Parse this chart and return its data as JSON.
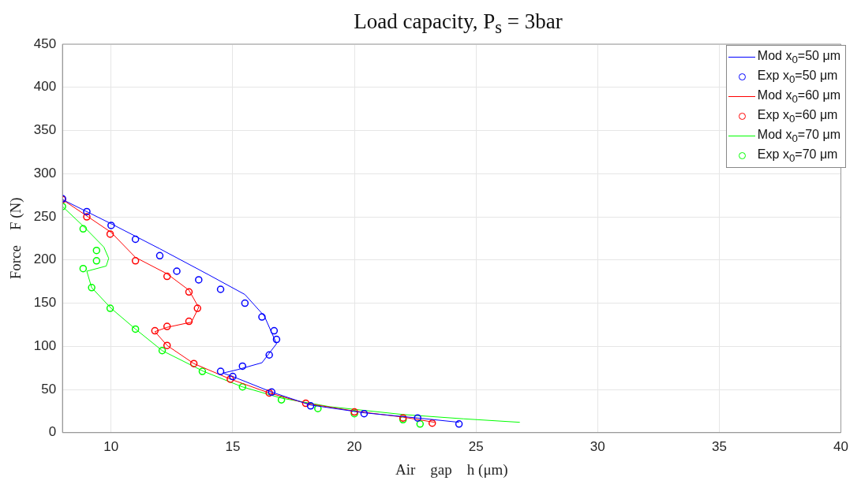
{
  "chart_data": {
    "type": "line",
    "title": "Load capacity, P$_{s}$ = 3bar",
    "xlabel": "Air    gap    h (μm)",
    "ylabel": "Force    F (N)",
    "xlim": [
      8,
      40
    ],
    "xticks": [
      10,
      15,
      20,
      25,
      30,
      35,
      40
    ],
    "ylim": [
      0,
      450
    ],
    "yticks": [
      0,
      50,
      100,
      150,
      200,
      250,
      300,
      350,
      400,
      450
    ],
    "grid": true,
    "legend": "top right",
    "series": [
      {
        "name": "Mod x$_{0}$=50 μm",
        "type": "line",
        "color": "#0000ff",
        "x": [
          8,
          10,
          12,
          14,
          15.5,
          16.3,
          16.8,
          16.2,
          15.2,
          14.6,
          15,
          16.6,
          18.2,
          20.4,
          22.6,
          24.3
        ],
        "values": [
          270,
          242,
          213,
          183,
          160,
          135,
          103,
          81,
          73,
          69,
          65,
          47,
          32,
          23,
          17,
          12
        ]
      },
      {
        "name": "Exp x$_{0}$=50 μm",
        "type": "scatter",
        "marker": "circle",
        "color": "#0000ff",
        "x": [
          8,
          9,
          10,
          11,
          12,
          12.7,
          13.6,
          14.5,
          15.5,
          16.2,
          16.7,
          16.8,
          16.5,
          15.4,
          14.5,
          15,
          16.6,
          18.2,
          20.4,
          22.6,
          24.3
        ],
        "values": [
          271,
          256,
          240,
          224,
          205,
          187,
          177,
          166,
          150,
          134,
          118,
          108,
          90,
          77,
          71,
          65,
          47,
          31,
          22,
          17,
          10
        ]
      },
      {
        "name": "Mod x$_{0}$=60 μm",
        "type": "line",
        "color": "#ff0000",
        "x": [
          8,
          10,
          11,
          12.3,
          13.2,
          13.6,
          13.3,
          12.3,
          11.8,
          12.3,
          13.4,
          14.9,
          16.5,
          18,
          20,
          22,
          23.3
        ],
        "values": [
          270,
          232,
          203,
          184,
          165,
          145,
          128,
          122,
          117,
          101,
          80,
          62,
          46,
          34,
          25,
          18,
          12
        ]
      },
      {
        "name": "Exp x$_{0}$=60 μm",
        "type": "scatter",
        "marker": "circle",
        "color": "#ff0000",
        "x": [
          8,
          9,
          9.96,
          11,
          12.3,
          13.2,
          13.55,
          13.2,
          12.3,
          11.8,
          12.3,
          13.4,
          14.9,
          16.5,
          18,
          20,
          22,
          23.2
        ],
        "values": [
          270,
          250,
          230,
          199,
          181,
          163,
          144,
          129,
          123,
          118,
          101,
          80,
          62,
          46,
          34,
          24,
          17,
          11
        ]
      },
      {
        "name": "Mod x$_{0}$=70 μm",
        "type": "line",
        "color": "#00ff00",
        "x": [
          8,
          8.9,
          9.7,
          9.9,
          9.8,
          9,
          9.2,
          10,
          11,
          12.1,
          13.8,
          15.4,
          17,
          19,
          22,
          24.5,
          26.8
        ],
        "values": [
          262,
          238,
          215,
          202,
          193,
          187,
          168,
          144,
          120,
          95,
          71,
          53,
          40,
          30,
          21,
          16,
          12
        ]
      },
      {
        "name": "Exp x$_{0}$=70 μm",
        "type": "scatter",
        "marker": "circle",
        "color": "#00ff00",
        "x": [
          8,
          8.85,
          9.4,
          9.4,
          8.85,
          9.2,
          9.96,
          11,
          12.1,
          13.75,
          15.4,
          17,
          18.5,
          20,
          22,
          22.7
        ],
        "values": [
          262,
          236,
          211,
          199,
          190,
          168,
          144,
          120,
          95,
          71,
          53,
          38,
          28,
          22,
          15,
          10
        ]
      }
    ]
  }
}
